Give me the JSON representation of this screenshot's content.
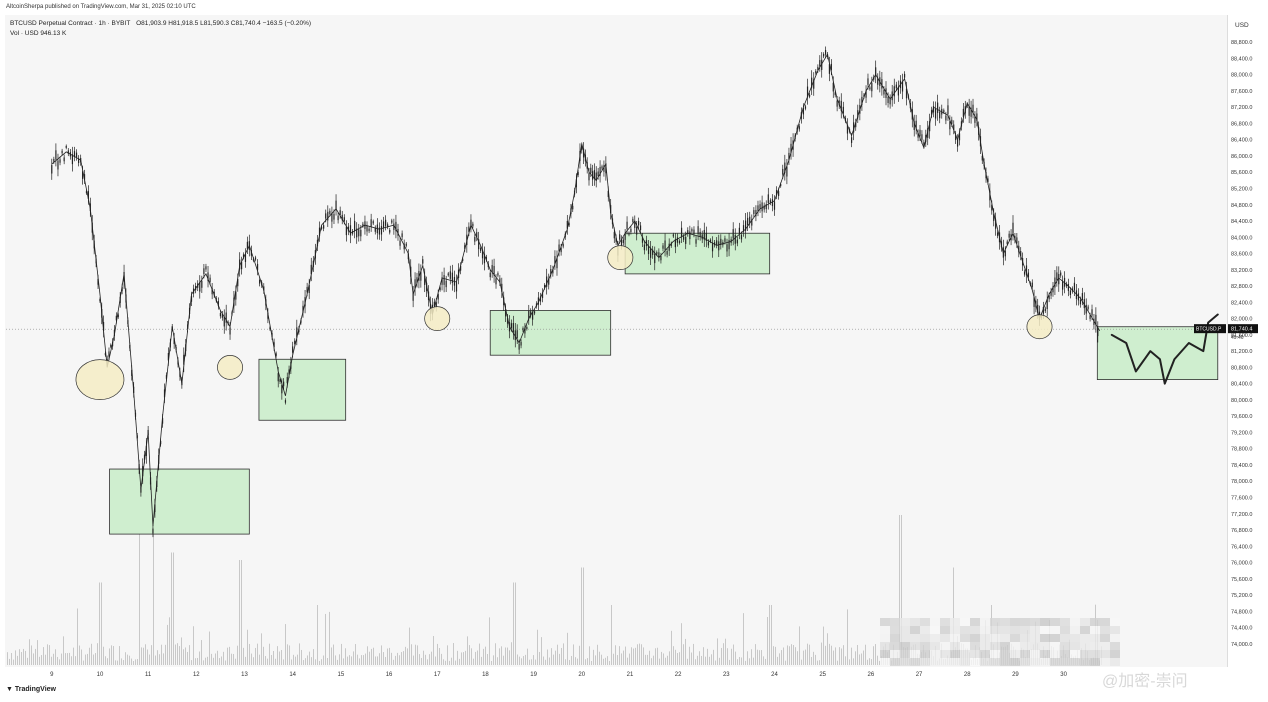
{
  "header": {
    "published": "AltcoinSherpa published on TradingView.com, Mar 31, 2025 02:10 UTC"
  },
  "legend": {
    "symbol": "BTCUSD Perpetual Contract · 1h · BYBIT",
    "ohlc": "O81,903.9  H81,918.5  L81,590.3  C81,740.4  −163.5 (−0.20%)",
    "volume": "Vol · USD  946.13 K"
  },
  "footer": {
    "logo_text": "TradingView",
    "watermark": "@加密-崇问"
  },
  "price_tag": {
    "symbol": "BTCUSD.P",
    "price": "81,740.4",
    "countdown": "49:46"
  },
  "colors": {
    "candle": "#222222",
    "box_fill": "#cfeecf",
    "box_stroke": "#2e2e2e",
    "circle_fill": "#f4ecc4",
    "volume": "#c8c8c8"
  },
  "chart_data": {
    "type": "line",
    "currency_label": "USD",
    "y_ticks": [
      "88,800.0",
      "88,400.0",
      "88,000.0",
      "87,600.0",
      "87,200.0",
      "86,800.0",
      "86,400.0",
      "86,000.0",
      "85,600.0",
      "85,200.0",
      "84,800.0",
      "84,400.0",
      "84,000.0",
      "83,600.0",
      "83,200.0",
      "82,800.0",
      "82,400.0",
      "82,000.0",
      "81,600.0",
      "81,200.0",
      "80,800.0",
      "80,400.0",
      "80,000.0",
      "79,600.0",
      "79,200.0",
      "78,800.0",
      "78,400.0",
      "78,000.0",
      "77,600.0",
      "77,200.0",
      "76,800.0",
      "76,400.0",
      "76,000.0",
      "75,600.0",
      "75,200.0",
      "74,800.0",
      "74,400.0",
      "74,000.0"
    ],
    "x_ticks": [
      "9",
      "10",
      "11",
      "12",
      "13",
      "14",
      "15",
      "16",
      "17",
      "18",
      "19",
      "20",
      "21",
      "22",
      "23",
      "24",
      "25",
      "26",
      "27",
      "28",
      "29",
      "30"
    ],
    "ylim": [
      73800,
      89000
    ],
    "current_price": 81740.4,
    "price_path": [
      {
        "day": 9.0,
        "price": 85800
      },
      {
        "day": 9.3,
        "price": 86100
      },
      {
        "day": 9.6,
        "price": 85900
      },
      {
        "day": 9.8,
        "price": 84700
      },
      {
        "day": 10.0,
        "price": 82600
      },
      {
        "day": 10.15,
        "price": 80800
      },
      {
        "day": 10.3,
        "price": 81600
      },
      {
        "day": 10.5,
        "price": 83100
      },
      {
        "day": 10.7,
        "price": 80200
      },
      {
        "day": 10.85,
        "price": 77800
      },
      {
        "day": 11.0,
        "price": 79200
      },
      {
        "day": 11.1,
        "price": 76900
      },
      {
        "day": 11.3,
        "price": 79600
      },
      {
        "day": 11.5,
        "price": 81800
      },
      {
        "day": 11.7,
        "price": 80400
      },
      {
        "day": 11.9,
        "price": 82600
      },
      {
        "day": 12.2,
        "price": 83100
      },
      {
        "day": 12.5,
        "price": 82200
      },
      {
        "day": 12.7,
        "price": 81800
      },
      {
        "day": 12.9,
        "price": 83300
      },
      {
        "day": 13.1,
        "price": 83800
      },
      {
        "day": 13.4,
        "price": 82700
      },
      {
        "day": 13.7,
        "price": 80700
      },
      {
        "day": 13.85,
        "price": 80100
      },
      {
        "day": 14.0,
        "price": 81100
      },
      {
        "day": 14.3,
        "price": 82600
      },
      {
        "day": 14.6,
        "price": 84300
      },
      {
        "day": 14.9,
        "price": 84700
      },
      {
        "day": 15.2,
        "price": 84100
      },
      {
        "day": 15.5,
        "price": 84300
      },
      {
        "day": 15.8,
        "price": 84200
      },
      {
        "day": 16.1,
        "price": 84300
      },
      {
        "day": 16.4,
        "price": 83600
      },
      {
        "day": 16.5,
        "price": 82600
      },
      {
        "day": 16.7,
        "price": 83300
      },
      {
        "day": 16.9,
        "price": 82100
      },
      {
        "day": 17.1,
        "price": 83000
      },
      {
        "day": 17.4,
        "price": 82900
      },
      {
        "day": 17.7,
        "price": 84300
      },
      {
        "day": 17.9,
        "price": 83800
      },
      {
        "day": 18.1,
        "price": 83200
      },
      {
        "day": 18.3,
        "price": 82900
      },
      {
        "day": 18.5,
        "price": 81800
      },
      {
        "day": 18.7,
        "price": 81400
      },
      {
        "day": 18.9,
        "price": 82000
      },
      {
        "day": 19.1,
        "price": 82400
      },
      {
        "day": 19.4,
        "price": 83200
      },
      {
        "day": 19.7,
        "price": 84200
      },
      {
        "day": 19.85,
        "price": 85100
      },
      {
        "day": 20.0,
        "price": 86300
      },
      {
        "day": 20.15,
        "price": 85600
      },
      {
        "day": 20.3,
        "price": 85400
      },
      {
        "day": 20.5,
        "price": 85800
      },
      {
        "day": 20.6,
        "price": 84600
      },
      {
        "day": 20.75,
        "price": 83800
      },
      {
        "day": 20.9,
        "price": 84100
      },
      {
        "day": 21.1,
        "price": 84400
      },
      {
        "day": 21.3,
        "price": 83900
      },
      {
        "day": 21.6,
        "price": 83500
      },
      {
        "day": 21.9,
        "price": 83900
      },
      {
        "day": 22.2,
        "price": 84100
      },
      {
        "day": 22.5,
        "price": 84000
      },
      {
        "day": 22.8,
        "price": 83800
      },
      {
        "day": 23.1,
        "price": 83900
      },
      {
        "day": 23.4,
        "price": 84200
      },
      {
        "day": 23.7,
        "price": 84700
      },
      {
        "day": 24.0,
        "price": 84900
      },
      {
        "day": 24.3,
        "price": 85900
      },
      {
        "day": 24.6,
        "price": 87200
      },
      {
        "day": 24.9,
        "price": 88100
      },
      {
        "day": 25.1,
        "price": 88500
      },
      {
        "day": 25.3,
        "price": 87400
      },
      {
        "day": 25.6,
        "price": 86500
      },
      {
        "day": 25.9,
        "price": 87600
      },
      {
        "day": 26.1,
        "price": 88000
      },
      {
        "day": 26.4,
        "price": 87400
      },
      {
        "day": 26.7,
        "price": 87900
      },
      {
        "day": 26.9,
        "price": 86800
      },
      {
        "day": 27.1,
        "price": 86200
      },
      {
        "day": 27.3,
        "price": 87200
      },
      {
        "day": 27.6,
        "price": 87000
      },
      {
        "day": 27.8,
        "price": 86400
      },
      {
        "day": 28.0,
        "price": 87300
      },
      {
        "day": 28.2,
        "price": 86900
      },
      {
        "day": 28.35,
        "price": 85800
      },
      {
        "day": 28.55,
        "price": 84600
      },
      {
        "day": 28.75,
        "price": 83600
      },
      {
        "day": 28.95,
        "price": 84100
      },
      {
        "day": 29.15,
        "price": 83400
      },
      {
        "day": 29.35,
        "price": 82700
      },
      {
        "day": 29.5,
        "price": 82000
      },
      {
        "day": 29.7,
        "price": 82600
      },
      {
        "day": 29.9,
        "price": 83000
      },
      {
        "day": 30.1,
        "price": 82800
      },
      {
        "day": 30.35,
        "price": 82500
      },
      {
        "day": 30.55,
        "price": 82100
      },
      {
        "day": 30.75,
        "price": 81700
      }
    ],
    "zones": [
      {
        "day_start": 10.2,
        "day_end": 13.1,
        "price_high": 78300,
        "price_low": 76700
      },
      {
        "day_start": 13.3,
        "day_end": 15.1,
        "price_high": 81000,
        "price_low": 79500
      },
      {
        "day_start": 18.1,
        "day_end": 20.6,
        "price_high": 82200,
        "price_low": 81100
      },
      {
        "day_start": 20.9,
        "day_end": 23.9,
        "price_high": 84100,
        "price_low": 83100
      },
      {
        "day_start": 30.7,
        "day_end": 33.2,
        "price_high": 81800,
        "price_low": 80500
      }
    ],
    "marked_lows": [
      {
        "day": 10.0,
        "price": 80500
      },
      {
        "day": 12.7,
        "price": 80800
      },
      {
        "day": 17.0,
        "price": 82000
      },
      {
        "day": 20.8,
        "price": 83500
      },
      {
        "day": 29.5,
        "price": 81800
      }
    ],
    "projection": [
      {
        "day": 31.0,
        "price": 81600
      },
      {
        "day": 31.3,
        "price": 81400
      },
      {
        "day": 31.5,
        "price": 80700
      },
      {
        "day": 31.8,
        "price": 81200
      },
      {
        "day": 32.0,
        "price": 81000
      },
      {
        "day": 32.1,
        "price": 80400
      },
      {
        "day": 32.3,
        "price": 81000
      },
      {
        "day": 32.6,
        "price": 81400
      },
      {
        "day": 32.9,
        "price": 81200
      },
      {
        "day": 33.0,
        "price": 81900
      },
      {
        "day": 33.2,
        "price": 82100
      }
    ],
    "volume_peaks": [
      {
        "day": 10.0,
        "v": 0.55
      },
      {
        "day": 10.8,
        "v": 0.9
      },
      {
        "day": 11.1,
        "v": 0.95
      },
      {
        "day": 11.5,
        "v": 0.75
      },
      {
        "day": 12.9,
        "v": 0.7
      },
      {
        "day": 14.5,
        "v": 0.4
      },
      {
        "day": 18.6,
        "v": 0.55
      },
      {
        "day": 20.0,
        "v": 0.65
      },
      {
        "day": 20.6,
        "v": 0.4
      },
      {
        "day": 23.9,
        "v": 0.4
      },
      {
        "day": 26.6,
        "v": 1.0
      },
      {
        "day": 27.7,
        "v": 0.65
      },
      {
        "day": 28.5,
        "v": 0.4
      },
      {
        "day": 29.7,
        "v": 0.3
      }
    ]
  }
}
